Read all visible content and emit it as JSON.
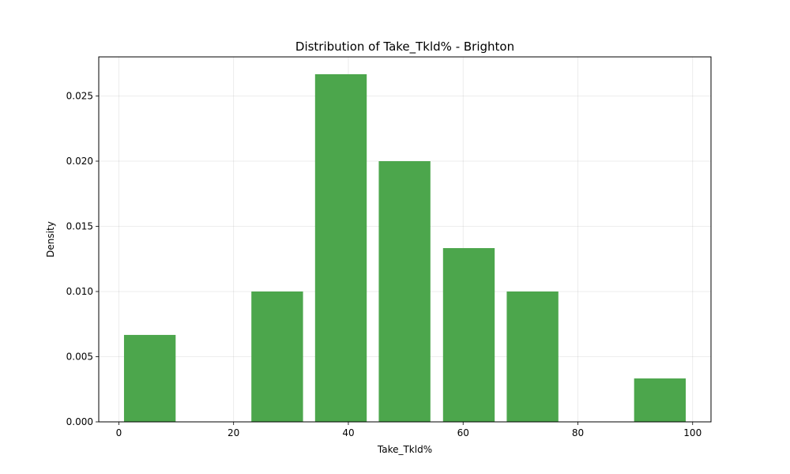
{
  "chart_data": {
    "type": "bar",
    "title": "Distribution of Take_Tkld% - Brighton",
    "xlabel": "Take_Tkld%",
    "ylabel": "Density",
    "bins": [
      {
        "x0": 0.9,
        "x1": 9.9,
        "value": 0.00667
      },
      {
        "x0": 23.1,
        "x1": 32.1,
        "value": 0.01
      },
      {
        "x0": 34.2,
        "x1": 43.2,
        "value": 0.02667
      },
      {
        "x0": 45.3,
        "x1": 54.3,
        "value": 0.02
      },
      {
        "x0": 56.5,
        "x1": 65.5,
        "value": 0.01333
      },
      {
        "x0": 67.6,
        "x1": 76.6,
        "value": 0.01
      },
      {
        "x0": 89.8,
        "x1": 98.8,
        "value": 0.00333
      }
    ],
    "xlim": [
      -3.5,
      103.2
    ],
    "ylim": [
      0,
      0.028
    ],
    "xticks": [
      0,
      20,
      40,
      60,
      80,
      100
    ],
    "yticks": [
      0.0,
      0.005,
      0.01,
      0.015,
      0.02,
      0.025
    ],
    "xtick_labels": [
      "0",
      "20",
      "40",
      "60",
      "80",
      "100"
    ],
    "ytick_labels": [
      "0.000",
      "0.005",
      "0.010",
      "0.015",
      "0.020",
      "0.025"
    ],
    "grid": true,
    "bar_color": "#4ca64c",
    "legend": "none"
  }
}
